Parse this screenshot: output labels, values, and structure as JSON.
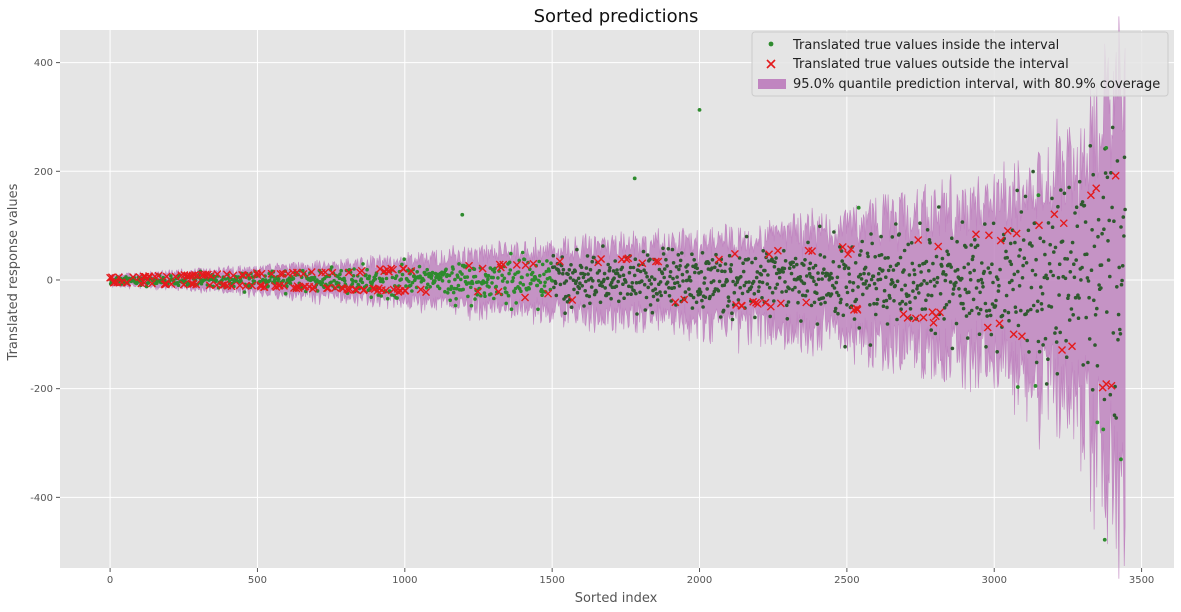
{
  "chart_data": {
    "type": "scatter",
    "title": "Sorted predictions",
    "xlabel": "Sorted index",
    "ylabel": "Translated response values",
    "xlim": [
      -170,
      3610
    ],
    "ylim": [
      -530,
      460
    ],
    "xticks": [
      0,
      500,
      1000,
      1500,
      2000,
      2500,
      3000,
      3500
    ],
    "yticks": [
      -400,
      -200,
      0,
      200,
      400
    ],
    "grid": true,
    "legend_position": "top-right",
    "n_points": 3445,
    "colors": {
      "background": "#e5e5e5",
      "grid": "#ffffff",
      "inside": "#2e8b2e",
      "outside": "#e41a1c",
      "interval": "#c085c0"
    },
    "legend": [
      {
        "key": "inside",
        "label": "Translated true values inside the interval"
      },
      {
        "key": "outside",
        "label": "Translated true values outside the interval"
      },
      {
        "key": "interval",
        "label": "95.0% quantile prediction interval, with 80.9% coverage"
      }
    ],
    "interval_half_width": {
      "x": [
        0,
        500,
        1000,
        1500,
        2000,
        2500,
        3000,
        3300,
        3445
      ],
      "value": [
        8,
        20,
        35,
        55,
        70,
        95,
        140,
        220,
        420
      ]
    },
    "notable_points": [
      {
        "x": 2000,
        "y": 313
      },
      {
        "x": 1780,
        "y": 187
      },
      {
        "x": 3380,
        "y": 243
      },
      {
        "x": 3375,
        "y": -478
      },
      {
        "x": 3430,
        "y": -330
      },
      {
        "x": 3350,
        "y": -262
      },
      {
        "x": 3370,
        "y": -275
      },
      {
        "x": 3080,
        "y": -197
      },
      {
        "x": 3140,
        "y": -195
      },
      {
        "x": 1195,
        "y": 120
      },
      {
        "x": 2540,
        "y": 133
      },
      {
        "x": 3150,
        "y": 156
      }
    ]
  }
}
